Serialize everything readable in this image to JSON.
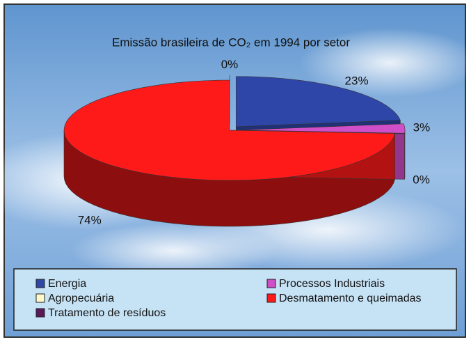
{
  "chart_data": {
    "type": "pie",
    "title": "Emissão brasileira de CO₂ em 1994 por setor",
    "categories": [
      "Energia",
      "Processos Industriais",
      "Agropecuária",
      "Desmatamento e queimadas",
      "Tratamento de resíduos"
    ],
    "values": [
      23,
      3,
      0,
      74,
      0
    ],
    "value_labels": [
      "23%",
      "3%",
      "0%",
      "74%",
      "0%"
    ],
    "colors": [
      "#2e46a8",
      "#d04fc8",
      "#fff8c8",
      "#ff1a1a",
      "#5a1a5a"
    ],
    "legend": "bottom"
  }
}
